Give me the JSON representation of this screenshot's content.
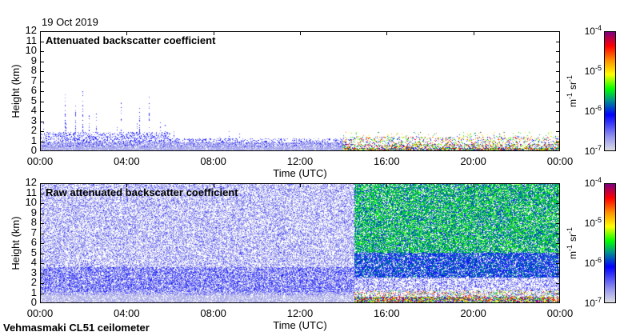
{
  "date": "19 Oct 2019",
  "footer": "Vehmasmaki CL51 ceilometer",
  "chart_data": [
    {
      "type": "heatmap",
      "title": "Attenuated backscatter coefficient",
      "xlabel": "Time (UTC)",
      "ylabel": "Height (km)",
      "xticks": [
        "00:00",
        "04:00",
        "08:00",
        "12:00",
        "16:00",
        "20:00",
        "00:00"
      ],
      "yticks": [
        "0",
        "1",
        "2",
        "3",
        "4",
        "5",
        "6",
        "7",
        "8",
        "9",
        "10",
        "11",
        "12"
      ],
      "xlim_hours": [
        0,
        24
      ],
      "ylim": [
        0,
        12
      ],
      "colorbar": {
        "unit_base": "m",
        "unit_exp": "-1",
        "unit_base2": "sr",
        "unit_exp2": "-1",
        "ticks": [
          {
            "base": "10",
            "exp": "-4"
          },
          {
            "base": "10",
            "exp": "-5"
          },
          {
            "base": "10",
            "exp": "-6"
          },
          {
            "base": "10",
            "exp": "-7"
          }
        ],
        "range_log10": [
          -7,
          -4
        ]
      }
    },
    {
      "type": "heatmap",
      "title": "Raw attenuated backscatter coefficient",
      "xlabel": "Time (UTC)",
      "ylabel": "Height (km)",
      "xticks": [
        "00:00",
        "04:00",
        "08:00",
        "12:00",
        "16:00",
        "20:00",
        "00:00"
      ],
      "yticks": [
        "0",
        "1",
        "2",
        "3",
        "4",
        "5",
        "6",
        "7",
        "8",
        "9",
        "10",
        "11",
        "12"
      ],
      "xlim_hours": [
        0,
        24
      ],
      "ylim": [
        0,
        12
      ],
      "colorbar": {
        "unit_base": "m",
        "unit_exp": "-1",
        "unit_base2": "sr",
        "unit_exp2": "-1",
        "ticks": [
          {
            "base": "10",
            "exp": "-4"
          },
          {
            "base": "10",
            "exp": "-5"
          },
          {
            "base": "10",
            "exp": "-6"
          },
          {
            "base": "10",
            "exp": "-7"
          }
        ],
        "range_log10": [
          -7,
          -4
        ]
      }
    }
  ]
}
